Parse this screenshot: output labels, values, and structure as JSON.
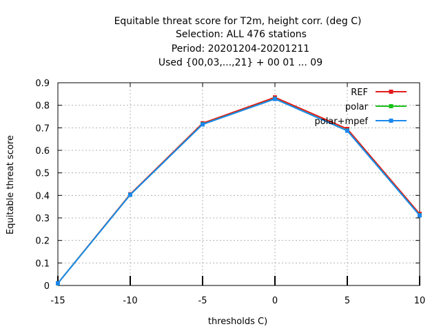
{
  "chart_data": {
    "type": "line",
    "title_lines": [
      "Equitable threat score  for T2m, height corr. (deg C)",
      "Selection: ALL    476 stations",
      "Period: 20201204-20201211",
      "Used {00,03,...,21} + 00 01 ... 09"
    ],
    "xlabel": "thresholds C)",
    "ylabel": "Equitable threat score",
    "x": [
      -15,
      -10,
      -5,
      0,
      5,
      10
    ],
    "xlim": [
      -15,
      10
    ],
    "ylim": [
      0,
      0.9
    ],
    "x_ticks": [
      "-15",
      "-10",
      "-5",
      "0",
      "5",
      "10"
    ],
    "y_ticks": [
      "0",
      "0.1",
      "0.2",
      "0.3",
      "0.4",
      "0.5",
      "0.6",
      "0.7",
      "0.8",
      "0.9"
    ],
    "grid": true,
    "legend_position": "top-right",
    "series": [
      {
        "name": "REF",
        "color": "#e41a1c",
        "values": [
          0.01,
          0.405,
          0.72,
          0.835,
          0.695,
          0.318
        ]
      },
      {
        "name": "polar",
        "color": "#19c319",
        "values": [
          0.01,
          0.403,
          0.716,
          0.829,
          0.688,
          0.312
        ]
      },
      {
        "name": "polar+mpef",
        "color": "#1a88ee",
        "values": [
          0.01,
          0.403,
          0.715,
          0.828,
          0.687,
          0.311
        ]
      }
    ]
  }
}
